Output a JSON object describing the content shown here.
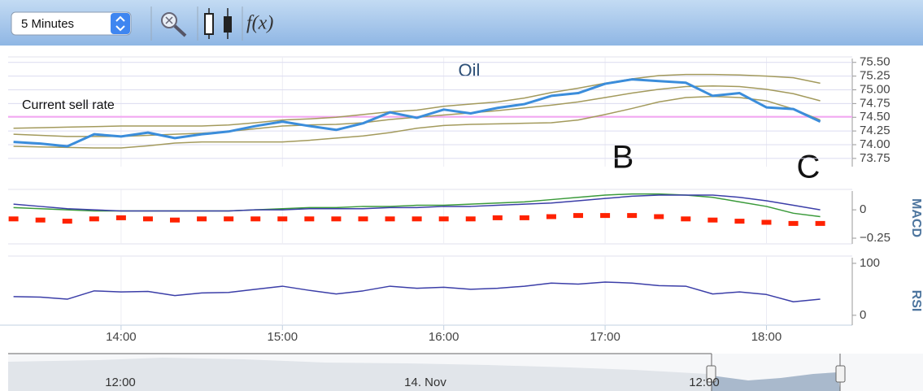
{
  "toolbar": {
    "interval": "5 Minutes",
    "function_label": "f(x)"
  },
  "navigator": {
    "labels": [
      "12:00",
      "14. Nov",
      "12:00"
    ]
  },
  "chart_data": [
    {
      "type": "line",
      "title": "Oil",
      "x": [
        "13:20",
        "13:30",
        "13:40",
        "13:50",
        "14:00",
        "14:10",
        "14:20",
        "14:30",
        "14:40",
        "14:50",
        "15:00",
        "15:10",
        "15:20",
        "15:30",
        "15:40",
        "15:50",
        "16:00",
        "16:10",
        "16:20",
        "16:30",
        "16:40",
        "16:50",
        "17:00",
        "17:10",
        "17:20",
        "17:30",
        "17:40",
        "17:50",
        "18:00",
        "18:10",
        "18:20"
      ],
      "xlim": [
        "13:18",
        "18:31"
      ],
      "xticks": [
        "14:00",
        "15:00",
        "16:00",
        "17:00",
        "18:00"
      ],
      "ylim": [
        73.6,
        75.6
      ],
      "yticks": [
        {
          "value": 73.75,
          "label": "73.75"
        },
        {
          "value": 74,
          "label": "74.00"
        },
        {
          "value": 74.25,
          "label": "74.25"
        },
        {
          "value": 74.5,
          "label": "74.50"
        },
        {
          "value": 74.75,
          "label": "74.75"
        },
        {
          "value": 75,
          "label": "75.00"
        },
        {
          "value": 75.25,
          "label": "75.25"
        },
        {
          "value": 75.5,
          "label": "75.50"
        }
      ],
      "grid": true,
      "reference_line": {
        "value": 74.51,
        "label": "Current sell rate",
        "color": "#f4a6f2"
      },
      "annotations": [
        "B",
        "C"
      ],
      "series": [
        {
          "color": "#a39a5c",
          "values": [
            74.3,
            74.31,
            74.32,
            74.33,
            74.34,
            74.34,
            74.34,
            74.34,
            74.36,
            74.4,
            74.45,
            74.47,
            74.5,
            74.55,
            74.6,
            74.63,
            74.7,
            74.74,
            74.78,
            74.85,
            74.95,
            75.03,
            75.12,
            75.2,
            75.26,
            75.28,
            75.28,
            75.27,
            75.25,
            75.22,
            75.12
          ]
        },
        {
          "color": "#a39a5c",
          "values": [
            74.19,
            74.17,
            74.15,
            74.15,
            74.15,
            74.17,
            74.19,
            74.21,
            74.24,
            74.29,
            74.34,
            74.36,
            74.37,
            74.4,
            74.46,
            74.5,
            74.54,
            74.58,
            74.62,
            74.67,
            74.72,
            74.78,
            74.86,
            74.94,
            75.01,
            75.06,
            75.07,
            75.06,
            75.01,
            74.93,
            74.8
          ]
        },
        {
          "color": "#a39a5c",
          "values": [
            73.97,
            73.96,
            73.95,
            73.94,
            73.94,
            73.98,
            74.03,
            74.05,
            74.05,
            74.05,
            74.05,
            74.08,
            74.12,
            74.16,
            74.22,
            74.3,
            74.35,
            74.37,
            74.38,
            74.39,
            74.4,
            74.45,
            74.55,
            74.66,
            74.78,
            74.86,
            74.88,
            74.86,
            74.8,
            74.65,
            74.45
          ]
        },
        {
          "color": "#3b8ddb",
          "values": [
            74.05,
            74.02,
            73.97,
            74.19,
            74.15,
            74.22,
            74.12,
            74.19,
            74.24,
            74.34,
            74.42,
            74.34,
            74.27,
            74.39,
            74.59,
            74.49,
            74.64,
            74.57,
            74.67,
            74.74,
            74.89,
            74.94,
            75.11,
            75.19,
            75.16,
            75.13,
            74.89,
            74.94,
            74.68,
            74.65,
            74.42
          ]
        }
      ]
    },
    {
      "type": "line",
      "y_label": "MACD",
      "ylim": [
        -0.3,
        0.18
      ],
      "yticks": [
        {
          "value": -0.25,
          "label": "−0.25"
        },
        0
      ],
      "series": [
        {
          "type": "bar",
          "color": "#ff2200",
          "values": [
            -0.08,
            -0.09,
            -0.1,
            -0.08,
            -0.07,
            -0.08,
            -0.09,
            -0.08,
            -0.08,
            -0.08,
            -0.08,
            -0.08,
            -0.08,
            -0.08,
            -0.08,
            -0.08,
            -0.08,
            -0.08,
            -0.07,
            -0.07,
            -0.06,
            -0.05,
            -0.05,
            -0.05,
            -0.06,
            -0.08,
            -0.09,
            -0.1,
            -0.11,
            -0.12,
            -0.12
          ]
        },
        {
          "color": "#3a9a3a",
          "values": [
            0.02,
            0.01,
            0,
            -0.01,
            -0.01,
            -0.01,
            -0.01,
            -0.01,
            -0.01,
            0,
            0.01,
            0.02,
            0.02,
            0.03,
            0.03,
            0.04,
            0.04,
            0.05,
            0.06,
            0.07,
            0.09,
            0.11,
            0.13,
            0.14,
            0.14,
            0.13,
            0.11,
            0.07,
            0.03,
            -0.03,
            -0.06
          ]
        },
        {
          "color": "#3b3ea8",
          "values": [
            0.05,
            0.03,
            0.01,
            0,
            -0.01,
            -0.01,
            -0.01,
            -0.01,
            -0.01,
            0,
            0,
            0.01,
            0.01,
            0.01,
            0.02,
            0.02,
            0.03,
            0.03,
            0.04,
            0.05,
            0.06,
            0.08,
            0.1,
            0.12,
            0.13,
            0.13,
            0.13,
            0.11,
            0.08,
            0.04,
            0
          ]
        }
      ]
    },
    {
      "type": "line",
      "y_label": "RSI",
      "ylim": [
        -19,
        114
      ],
      "yticks": [
        0,
        100
      ],
      "series": [
        {
          "color": "#3b3ea8",
          "values": [
            36,
            35,
            31,
            47,
            45,
            46,
            38,
            43,
            44,
            50,
            56,
            48,
            41,
            47,
            56,
            52,
            54,
            50,
            52,
            56,
            62,
            60,
            64,
            62,
            57,
            56,
            41,
            45,
            40,
            26,
            31
          ]
        }
      ]
    }
  ]
}
